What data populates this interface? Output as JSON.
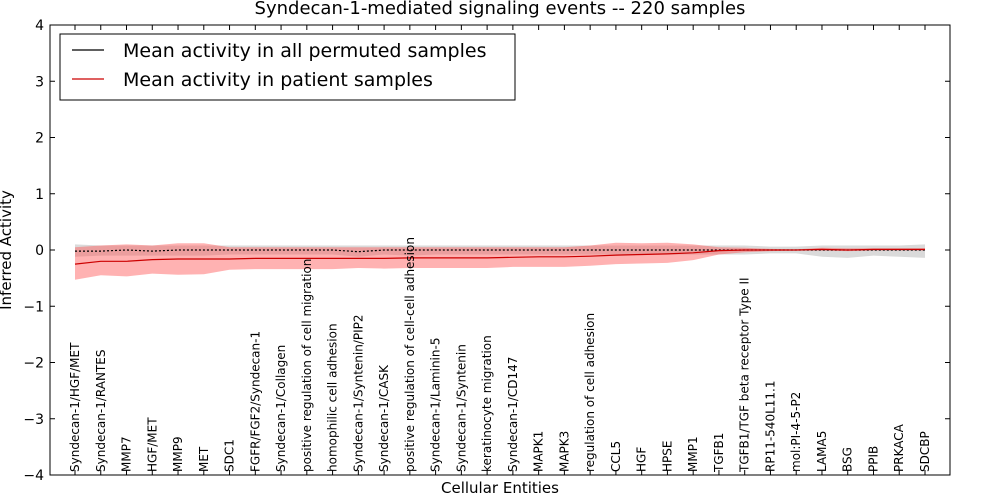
{
  "chart_data": {
    "type": "line",
    "title": "Syndecan-1-mediated signaling events -- 220 samples",
    "xlabel": "Cellular Entities",
    "ylabel": "Inferred Activity",
    "ylim": [
      -4,
      4
    ],
    "yticks": [
      "−4",
      "−3",
      "−2",
      "−1",
      "0",
      "1",
      "2",
      "3",
      "4"
    ],
    "grid": false,
    "legend_position": "top-left",
    "categories": [
      "Syndecan-1/HGF/MET",
      "Syndecan-1/RANTES",
      "MMP7",
      "HGF/MET",
      "MMP9",
      "MET",
      "SDC1",
      "FGFR/FGF2/Syndecan-1",
      "Syndecan-1/Collagen",
      "positive regulation of cell migration",
      "homophilic cell adhesion",
      "Syndecan-1/Syntenin/PIP2",
      "Syndecan-1/CASK",
      "positive regulation of cell-cell adhesion",
      "Syndecan-1/Laminin-5",
      "Syndecan-1/Syntenin",
      "keratinocyte migration",
      "Syndecan-1/CD147",
      "MAPK1",
      "MAPK3",
      "regulation of cell adhesion",
      "CCL5",
      "HGF",
      "HPSE",
      "MMP1",
      "TGFB1",
      "TGFB1/TGF beta receptor Type II",
      "RP11-540L11.1",
      "mol:PI-4-5-P2",
      "LAMA5",
      "BSG",
      "PPIB",
      "PRKACA",
      "SDCBP"
    ],
    "series": [
      {
        "name": "Mean activity in all permuted samples",
        "color": "#000000",
        "band_color": "#bbbbbb",
        "values": [
          -0.02,
          -0.02,
          0.0,
          -0.02,
          0.0,
          0.0,
          0.0,
          0.0,
          0.0,
          0.0,
          0.0,
          -0.03,
          0.0,
          0.0,
          0.0,
          0.0,
          0.0,
          0.0,
          0.0,
          0.0,
          0.0,
          0.0,
          0.0,
          0.0,
          0.0,
          0.0,
          0.0,
          0.0,
          0.0,
          0.0,
          0.0,
          0.0,
          0.0,
          0.0
        ],
        "upper": [
          0.1,
          0.08,
          0.08,
          0.08,
          0.08,
          0.08,
          0.08,
          0.08,
          0.08,
          0.08,
          0.08,
          0.08,
          0.08,
          0.08,
          0.08,
          0.08,
          0.08,
          0.08,
          0.08,
          0.08,
          0.08,
          0.08,
          0.08,
          0.08,
          0.08,
          0.08,
          0.08,
          0.06,
          0.06,
          0.08,
          0.08,
          0.08,
          0.08,
          0.1
        ],
        "lower": [
          -0.12,
          -0.1,
          -0.1,
          -0.1,
          -0.1,
          -0.1,
          -0.08,
          -0.08,
          -0.08,
          -0.08,
          -0.08,
          -0.12,
          -0.08,
          -0.1,
          -0.08,
          -0.08,
          -0.08,
          -0.08,
          -0.08,
          -0.08,
          -0.08,
          -0.08,
          -0.08,
          -0.08,
          -0.08,
          -0.08,
          -0.08,
          -0.06,
          -0.06,
          -0.12,
          -0.14,
          -0.1,
          -0.12,
          -0.14
        ]
      },
      {
        "name": "Mean activity in patient samples",
        "color": "#cc0000",
        "band_color": "#ff5555",
        "values": [
          -0.25,
          -0.2,
          -0.2,
          -0.17,
          -0.16,
          -0.16,
          -0.16,
          -0.15,
          -0.15,
          -0.15,
          -0.15,
          -0.15,
          -0.15,
          -0.14,
          -0.14,
          -0.14,
          -0.14,
          -0.13,
          -0.12,
          -0.12,
          -0.11,
          -0.09,
          -0.08,
          -0.07,
          -0.05,
          -0.01,
          0.0,
          0.0,
          0.0,
          0.01,
          0.0,
          0.01,
          0.01,
          0.01
        ],
        "upper": [
          0.05,
          0.08,
          0.1,
          0.08,
          0.12,
          0.12,
          0.05,
          0.05,
          0.05,
          0.05,
          0.05,
          0.05,
          0.05,
          0.05,
          0.05,
          0.05,
          0.05,
          0.05,
          0.05,
          0.05,
          0.08,
          0.13,
          0.12,
          0.13,
          0.1,
          0.05,
          0.04,
          0.02,
          0.01,
          0.04,
          0.03,
          0.03,
          0.03,
          0.03
        ],
        "lower": [
          -0.53,
          -0.45,
          -0.47,
          -0.42,
          -0.44,
          -0.43,
          -0.35,
          -0.34,
          -0.34,
          -0.34,
          -0.34,
          -0.32,
          -0.33,
          -0.32,
          -0.32,
          -0.32,
          -0.32,
          -0.3,
          -0.3,
          -0.3,
          -0.28,
          -0.25,
          -0.24,
          -0.23,
          -0.18,
          -0.08,
          -0.04,
          -0.02,
          -0.01,
          -0.01,
          -0.02,
          -0.01,
          -0.01,
          -0.01
        ]
      }
    ]
  }
}
